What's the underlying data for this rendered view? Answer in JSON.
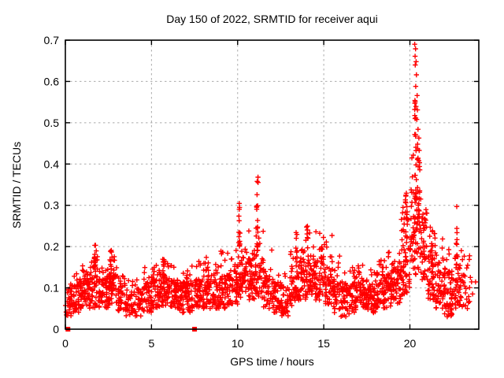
{
  "header": {
    "title": "Day 150 of 2022, SRMTID for receiver aqui"
  },
  "chart_data": {
    "type": "scatter",
    "title": "Day 150 of 2022, SRMTID for receiver aqui",
    "xlabel": "GPS time / hours",
    "ylabel": "SRMTID / TECUs",
    "xlim": [
      0,
      24
    ],
    "ylim": [
      0,
      0.7
    ],
    "x_ticks": [
      0,
      5,
      10,
      15,
      20
    ],
    "x_tick_labels": [
      "0",
      "5",
      "10",
      "15",
      "20"
    ],
    "y_ticks": [
      0,
      0.1,
      0.2,
      0.3,
      0.4,
      0.5,
      0.6,
      0.7
    ],
    "y_tick_labels": [
      "0",
      "0.1",
      "0.2",
      "0.3",
      "0.4",
      "0.5",
      "0.6",
      "0.7"
    ],
    "grid": true,
    "legend": "none",
    "marker": "plus",
    "marker_color": "#ff0000",
    "grid_color": "#ababab",
    "seed": 1150,
    "baseline_bins": [
      [
        0.0,
        0.5,
        0.03,
        0.09,
        0.12,
        40
      ],
      [
        0.5,
        1.0,
        0.04,
        0.11,
        0.15,
        48
      ],
      [
        1.0,
        1.5,
        0.05,
        0.13,
        0.18,
        52
      ],
      [
        1.5,
        2.0,
        0.05,
        0.14,
        0.19,
        50
      ],
      [
        2.0,
        2.5,
        0.05,
        0.12,
        0.16,
        46
      ],
      [
        2.5,
        3.0,
        0.06,
        0.13,
        0.18,
        50
      ],
      [
        3.0,
        3.5,
        0.04,
        0.1,
        0.13,
        42
      ],
      [
        3.5,
        4.0,
        0.03,
        0.09,
        0.12,
        38
      ],
      [
        4.0,
        4.5,
        0.03,
        0.09,
        0.12,
        34
      ],
      [
        4.5,
        5.0,
        0.04,
        0.11,
        0.15,
        44
      ],
      [
        5.0,
        5.5,
        0.05,
        0.12,
        0.16,
        48
      ],
      [
        5.5,
        6.0,
        0.05,
        0.13,
        0.17,
        52
      ],
      [
        6.0,
        6.5,
        0.05,
        0.12,
        0.16,
        48
      ],
      [
        6.5,
        7.0,
        0.04,
        0.11,
        0.14,
        46
      ],
      [
        7.0,
        7.5,
        0.04,
        0.12,
        0.16,
        48
      ],
      [
        7.5,
        8.0,
        0.05,
        0.12,
        0.17,
        48
      ],
      [
        8.0,
        8.5,
        0.05,
        0.13,
        0.18,
        52
      ],
      [
        8.5,
        9.0,
        0.05,
        0.12,
        0.16,
        48
      ],
      [
        9.0,
        9.5,
        0.05,
        0.13,
        0.19,
        48
      ],
      [
        9.5,
        10.0,
        0.06,
        0.14,
        0.2,
        48
      ],
      [
        10.0,
        10.5,
        0.07,
        0.16,
        0.24,
        48
      ],
      [
        10.5,
        11.0,
        0.07,
        0.17,
        0.25,
        46
      ],
      [
        11.0,
        11.5,
        0.07,
        0.17,
        0.26,
        46
      ],
      [
        11.5,
        12.0,
        0.05,
        0.13,
        0.2,
        42
      ],
      [
        12.0,
        12.5,
        0.04,
        0.11,
        0.15,
        42
      ],
      [
        12.5,
        13.0,
        0.03,
        0.1,
        0.14,
        38
      ],
      [
        13.0,
        13.5,
        0.05,
        0.13,
        0.19,
        44
      ],
      [
        13.5,
        14.0,
        0.07,
        0.17,
        0.24,
        48
      ],
      [
        14.0,
        14.5,
        0.08,
        0.18,
        0.26,
        52
      ],
      [
        14.5,
        15.0,
        0.07,
        0.17,
        0.24,
        52
      ],
      [
        15.0,
        15.5,
        0.06,
        0.15,
        0.23,
        46
      ],
      [
        15.5,
        16.0,
        0.04,
        0.12,
        0.18,
        42
      ],
      [
        16.0,
        16.5,
        0.03,
        0.1,
        0.14,
        44
      ],
      [
        16.5,
        17.0,
        0.04,
        0.11,
        0.15,
        48
      ],
      [
        17.0,
        17.5,
        0.05,
        0.12,
        0.17,
        48
      ],
      [
        17.5,
        18.0,
        0.04,
        0.11,
        0.15,
        48
      ],
      [
        18.0,
        18.5,
        0.05,
        0.13,
        0.17,
        52
      ],
      [
        18.5,
        19.0,
        0.05,
        0.13,
        0.19,
        52
      ],
      [
        19.0,
        19.5,
        0.06,
        0.15,
        0.2,
        48
      ],
      [
        19.5,
        20.0,
        0.08,
        0.24,
        0.34,
        58
      ],
      [
        20.0,
        20.5,
        0.13,
        0.32,
        0.44,
        60
      ],
      [
        20.5,
        21.0,
        0.12,
        0.28,
        0.4,
        55
      ],
      [
        21.0,
        21.5,
        0.07,
        0.2,
        0.26,
        48
      ],
      [
        21.5,
        22.0,
        0.05,
        0.16,
        0.22,
        50
      ],
      [
        22.0,
        22.5,
        0.03,
        0.14,
        0.2,
        50
      ],
      [
        22.5,
        23.0,
        0.05,
        0.16,
        0.24,
        40
      ],
      [
        23.0,
        23.5,
        0.05,
        0.13,
        0.18,
        26
      ],
      [
        23.5,
        23.9,
        0.08,
        0.13,
        0.15,
        4
      ]
    ],
    "satellite_spikes": [
      [
        1.7,
        0.12,
        0.15,
        0.21,
        10
      ],
      [
        2.65,
        0.1,
        0.1,
        0.205,
        12
      ],
      [
        5.7,
        0.1,
        0.12,
        0.17,
        8
      ],
      [
        10.1,
        0.08,
        0.17,
        0.315,
        12
      ],
      [
        11.15,
        0.1,
        0.19,
        0.37,
        16
      ],
      [
        13.4,
        0.1,
        0.17,
        0.25,
        8
      ],
      [
        14.05,
        0.12,
        0.15,
        0.26,
        10
      ],
      [
        19.8,
        0.1,
        0.2,
        0.335,
        12
      ],
      [
        20.33,
        0.1,
        0.3,
        0.56,
        20
      ],
      [
        20.5,
        0.15,
        0.25,
        0.44,
        16
      ],
      [
        21.3,
        0.1,
        0.1,
        0.24,
        10
      ],
      [
        22.4,
        0.08,
        0.02,
        0.09,
        8
      ],
      [
        22.7,
        0.08,
        0.1,
        0.25,
        10
      ]
    ],
    "extreme_points": [
      [
        20.28,
        0.69
      ],
      [
        20.33,
        0.679
      ],
      [
        20.3,
        0.661
      ],
      [
        20.36,
        0.648
      ],
      [
        20.31,
        0.64
      ],
      [
        20.38,
        0.616
      ],
      [
        20.34,
        0.588
      ],
      [
        20.42,
        0.566
      ],
      [
        20.29,
        0.547
      ],
      [
        20.44,
        0.531
      ],
      [
        20.4,
        0.508
      ],
      [
        20.47,
        0.484
      ],
      [
        20.52,
        0.463
      ],
      [
        20.45,
        0.448
      ],
      [
        22.72,
        0.297
      ]
    ],
    "zero_square_points_x": [
      0.15,
      7.5
    ]
  }
}
